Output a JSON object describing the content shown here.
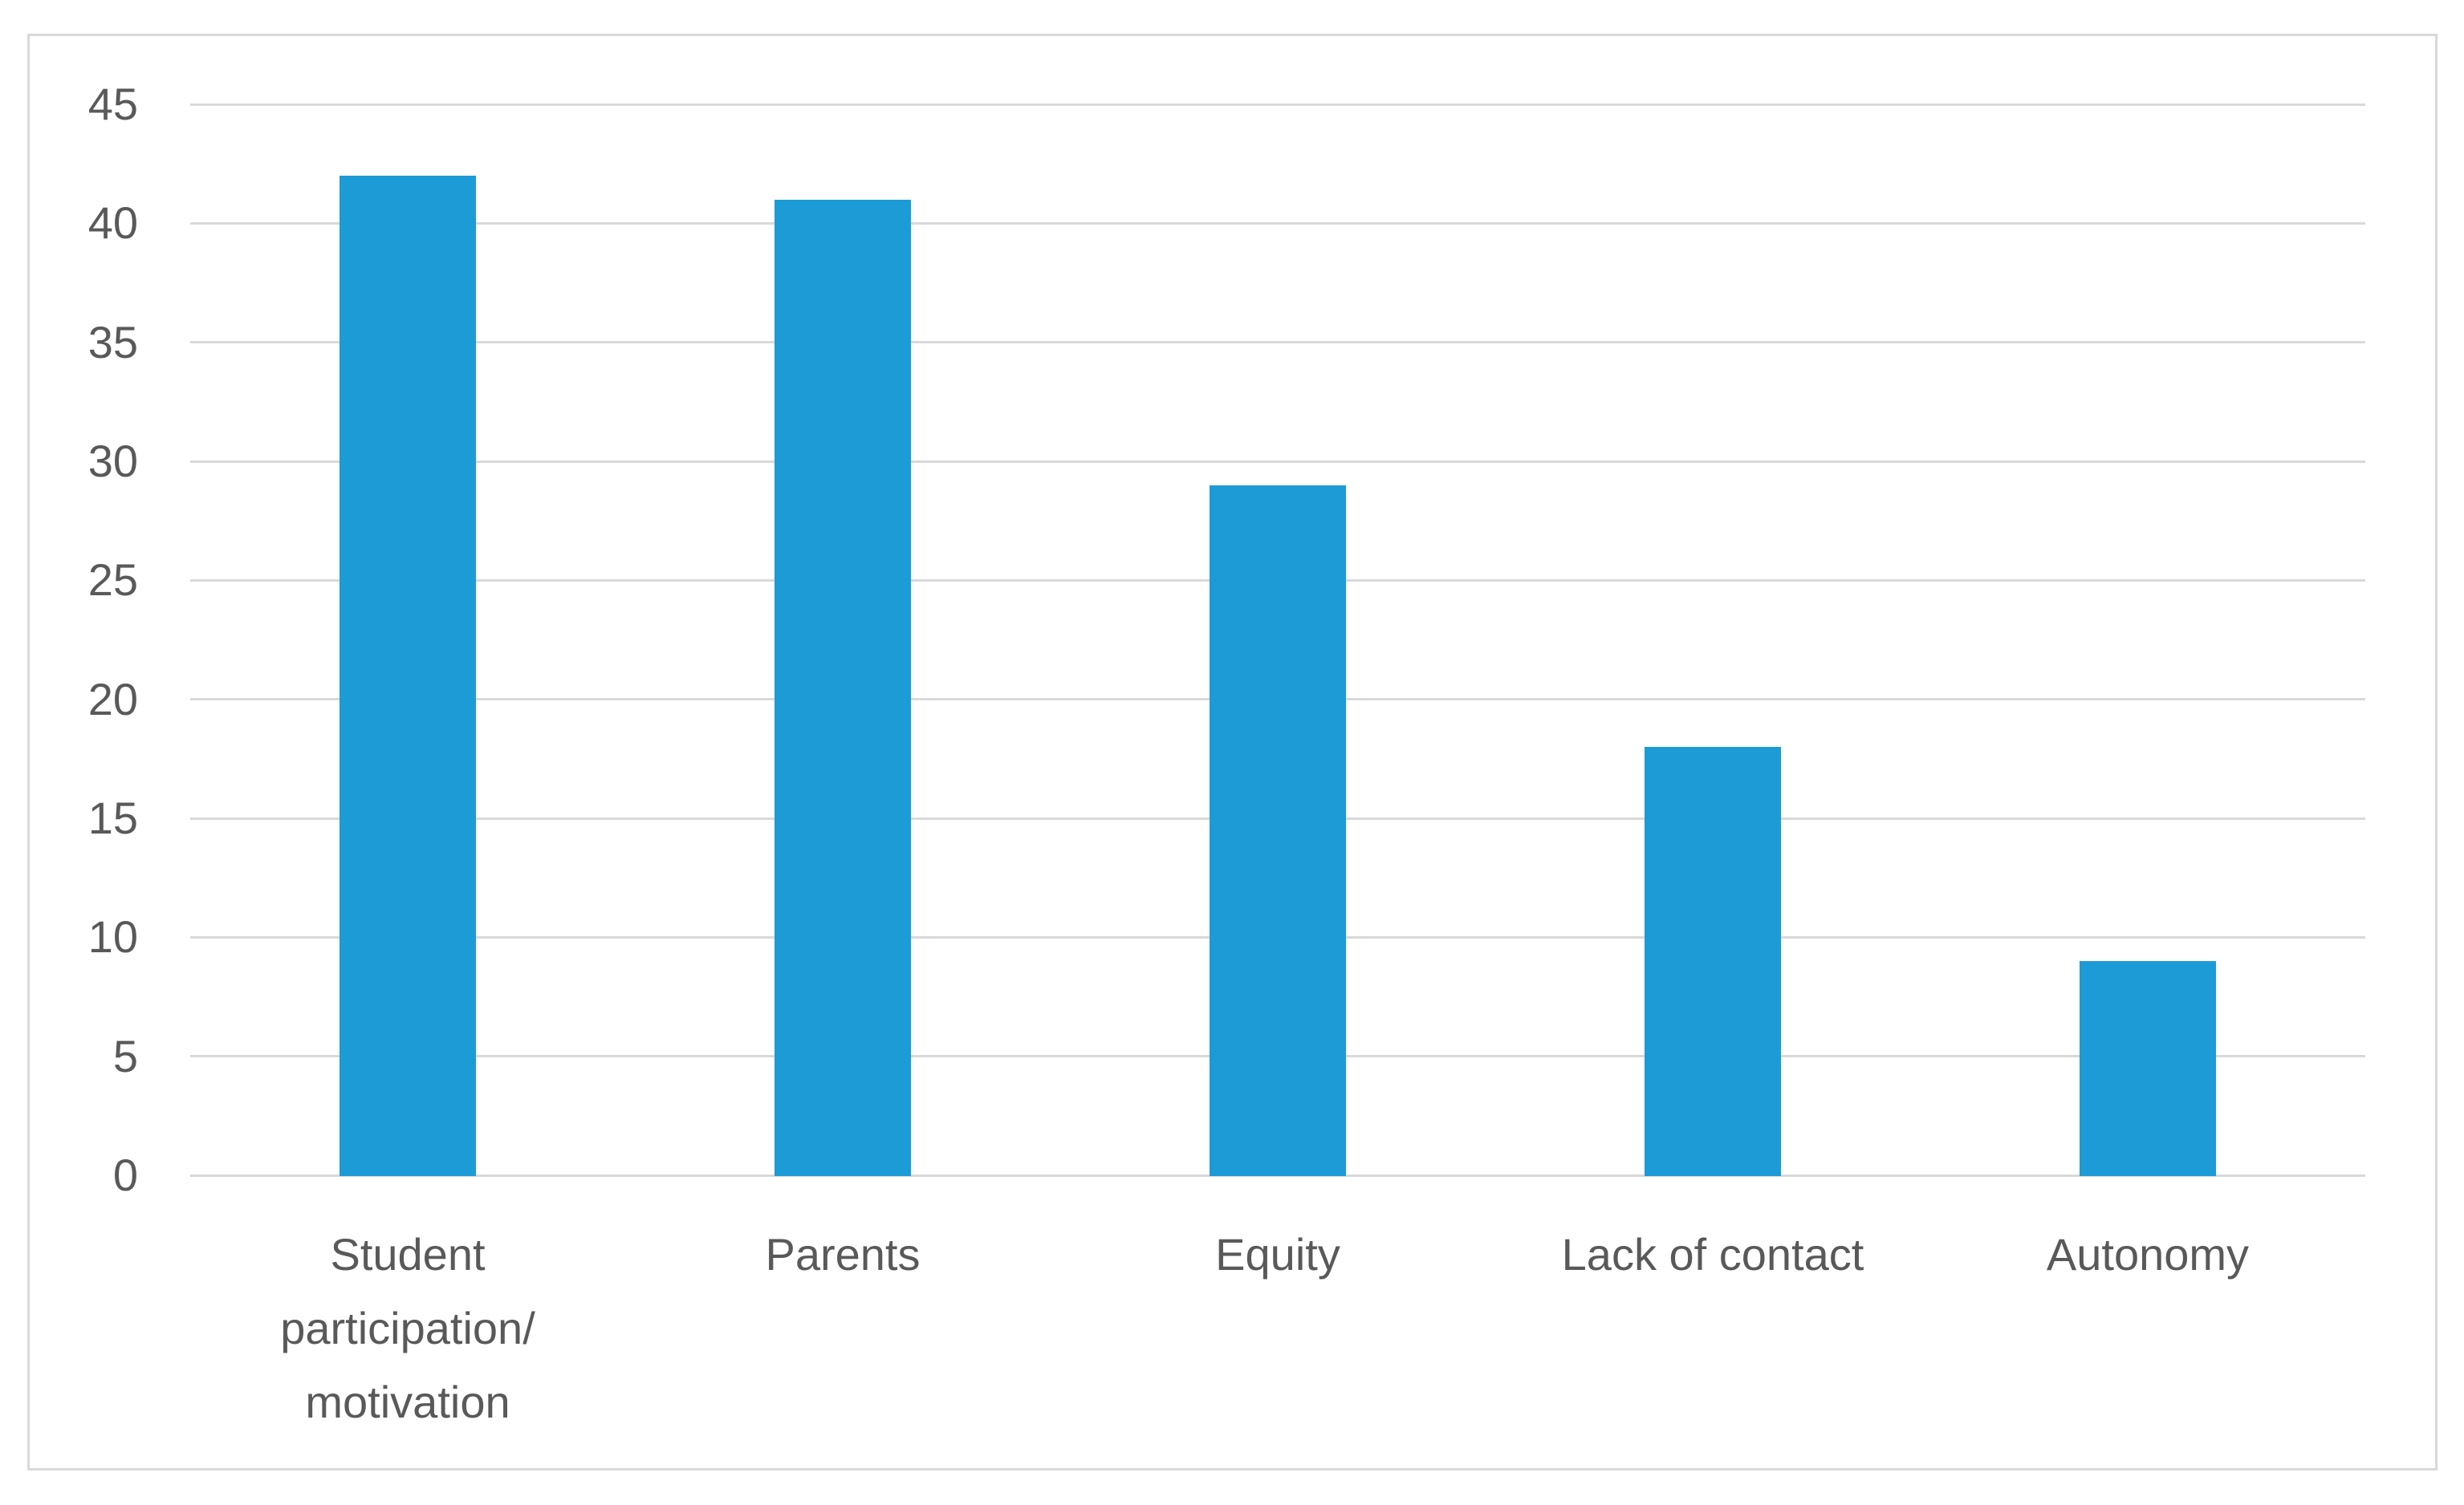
{
  "figure": {
    "background_color": "#ffffff",
    "border_color": "#d9d9d9"
  },
  "chart_data": {
    "type": "bar",
    "title": "",
    "xlabel": "",
    "ylabel": "",
    "categories": [
      "Student participation/ motivation",
      "Parents",
      "Equity",
      "Lack of contact",
      "Autonomy"
    ],
    "category_lines": [
      [
        "Student",
        "participation/",
        "motivation"
      ],
      [
        "Parents"
      ],
      [
        "Equity"
      ],
      [
        "Lack of contact"
      ],
      [
        "Autonomy"
      ]
    ],
    "values": [
      42,
      41,
      29,
      18,
      9
    ],
    "ylim": [
      0,
      45
    ],
    "ytick_step": 5,
    "yticks": [
      "45",
      "40",
      "35",
      "30",
      "25",
      "20",
      "15",
      "10",
      "5",
      "0"
    ],
    "grid": true,
    "legend": false,
    "bar_color": "#1d9bd6",
    "gridline_color": "#d9d9d9",
    "axis_text_color": "#595959"
  }
}
